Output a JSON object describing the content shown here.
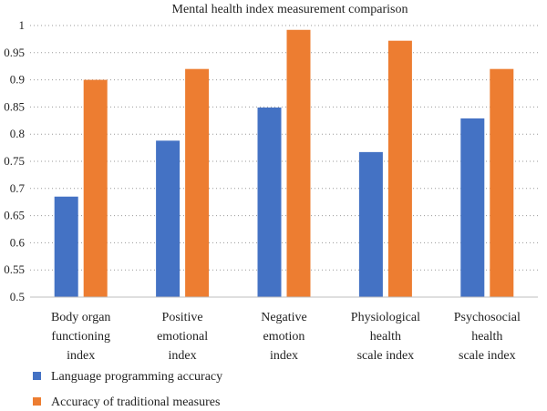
{
  "chart_data": {
    "type": "bar",
    "title": "Mental health index measurement comparison",
    "categories": [
      [
        "Body organ",
        "functioning",
        "index"
      ],
      [
        "Positive",
        "emotional",
        "index"
      ],
      [
        "Negative",
        "emotion",
        "index"
      ],
      [
        "Physiological",
        "health",
        "scale index"
      ],
      [
        "Psychosocial",
        "health",
        "scale index"
      ]
    ],
    "series": [
      {
        "name": "Language programming accuracy",
        "color": "#4472C4",
        "values": [
          0.685,
          0.788,
          0.849,
          0.767,
          0.829
        ]
      },
      {
        "name": "Accuracy of traditional measures",
        "color": "#ED7D31",
        "values": [
          0.9,
          0.92,
          0.992,
          0.972,
          0.92
        ]
      }
    ],
    "ylim": [
      0.5,
      1
    ],
    "yticks": [
      "0.5",
      "0.55",
      "0.6",
      "0.65",
      "0.7",
      "0.75",
      "0.8",
      "0.85",
      "0.9",
      "0.95",
      "1"
    ],
    "grid": true,
    "legend_position": "bottom-left"
  }
}
